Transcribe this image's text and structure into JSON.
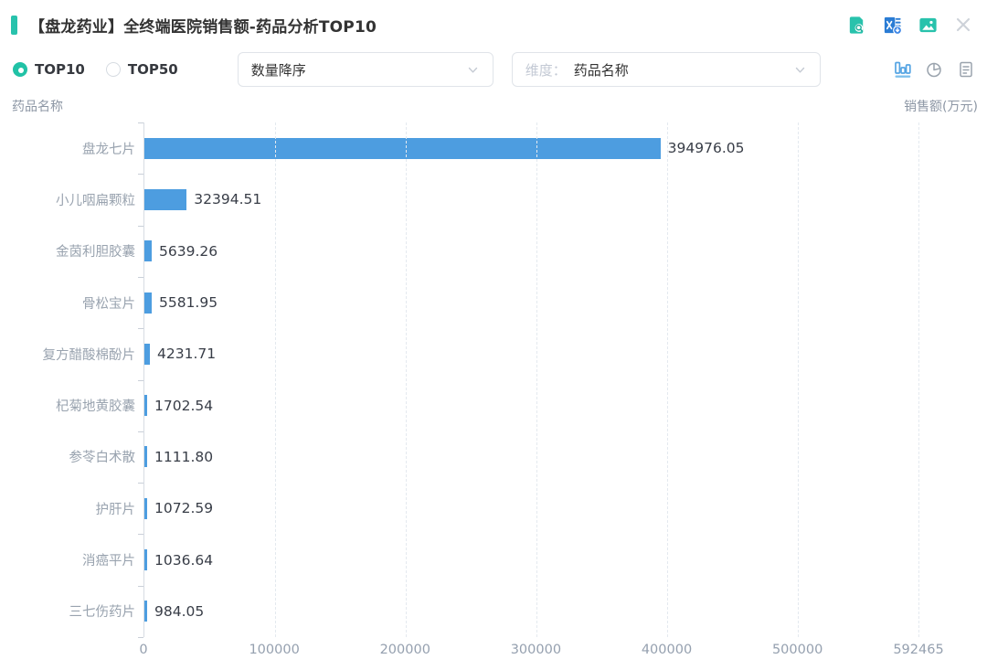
{
  "header": {
    "title": "【盘龙药业】全终端医院销售额-药品分析TOP10",
    "accent_color": "#28C2AC",
    "icons": [
      "document-search-icon",
      "excel-export-icon",
      "image-export-icon",
      "close-icon"
    ]
  },
  "controls": {
    "radio_options": [
      {
        "label": "TOP10",
        "selected": true
      },
      {
        "label": "TOP50",
        "selected": false
      }
    ],
    "sort_select": {
      "value": "数量降序"
    },
    "dimension_select": {
      "prefix": "维度：",
      "value": "药品名称"
    },
    "view_toggles": [
      "bar-chart",
      "pie-chart",
      "report"
    ],
    "active_view": "bar-chart"
  },
  "axes": {
    "y_axis_name": "药品名称",
    "x_axis_name": "销售额(万元)"
  },
  "chart_data": {
    "type": "bar",
    "orientation": "horizontal",
    "title": "【盘龙药业】全终端医院销售额-药品分析TOP10",
    "xlabel": "销售额(万元)",
    "ylabel": "药品名称",
    "categories": [
      "盘龙七片",
      "小儿咽扁颗粒",
      "金茵利胆胶囊",
      "骨松宝片",
      "复方醋酸棉酚片",
      "杞菊地黄胶囊",
      "参苓白术散",
      "护肝片",
      "消癌平片",
      "三七伤药片"
    ],
    "values": [
      394976.05,
      32394.51,
      5639.26,
      5581.95,
      4231.71,
      1702.54,
      1111.8,
      1072.59,
      1036.64,
      984.05
    ],
    "value_labels": [
      "394976.05",
      "32394.51",
      "5639.26",
      "5581.95",
      "4231.71",
      "1702.54",
      "1111.80",
      "1072.59",
      "1036.64",
      "984.05"
    ],
    "xlim": [
      0,
      592465
    ],
    "x_ticks": [
      {
        "value": 0,
        "label": "0"
      },
      {
        "value": 100000,
        "label": "100000"
      },
      {
        "value": 200000,
        "label": "200000"
      },
      {
        "value": 300000,
        "label": "300000"
      },
      {
        "value": 400000,
        "label": "400000"
      },
      {
        "value": 500000,
        "label": "500000"
      },
      {
        "value": 592465,
        "label": "592465"
      }
    ],
    "bar_color": "#4D9DE0",
    "grid": "vertical-dashed",
    "legend": "none"
  }
}
